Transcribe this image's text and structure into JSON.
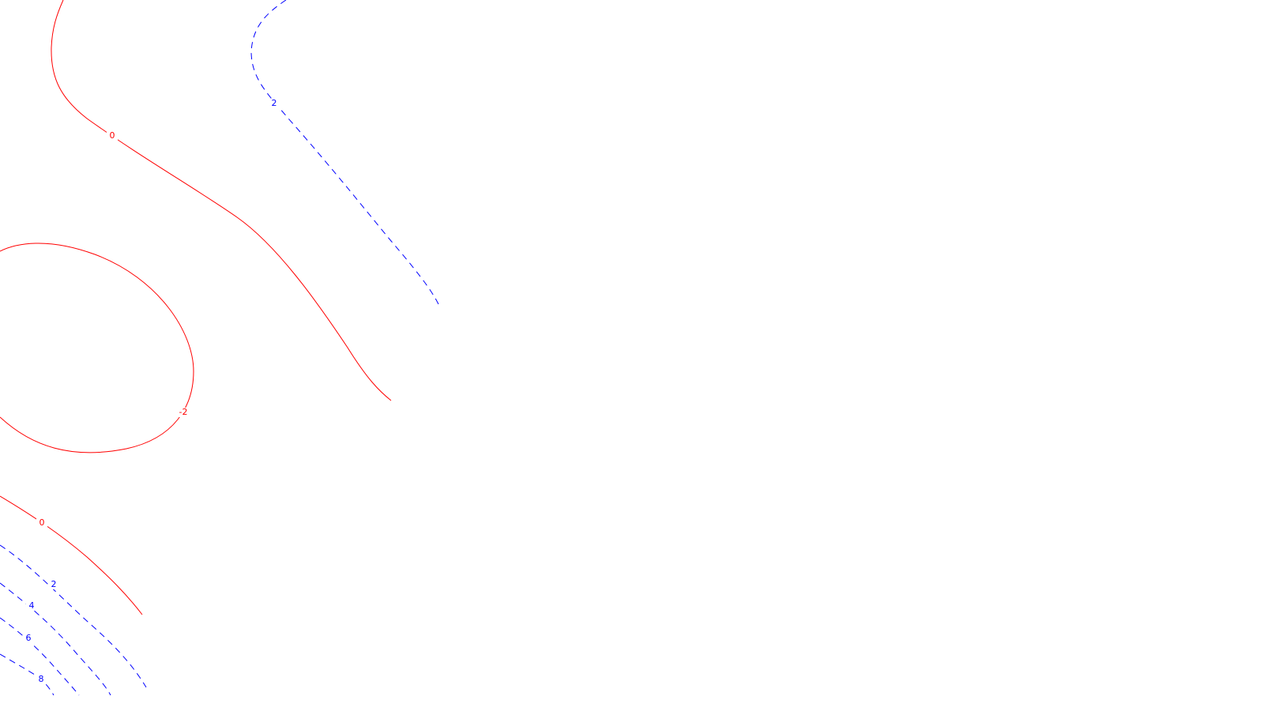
{
  "chart_data": {
    "type": "contour",
    "title": "",
    "xlabel": "",
    "ylabel": "",
    "line_styles": {
      "positive": {
        "color": "#0000ff",
        "dash": "dashed"
      },
      "non_positive": {
        "color": "#ff0000",
        "dash": "solid"
      }
    },
    "contours": [
      {
        "level": "0",
        "sign": "non_positive"
      },
      {
        "level": "-2",
        "sign": "non_positive"
      },
      {
        "level": "0",
        "sign": "non_positive"
      },
      {
        "level": "2",
        "sign": "positive"
      },
      {
        "level": "2",
        "sign": "positive"
      },
      {
        "level": "4",
        "sign": "positive"
      },
      {
        "level": "6",
        "sign": "positive"
      },
      {
        "level": "8",
        "sign": "positive"
      }
    ]
  }
}
